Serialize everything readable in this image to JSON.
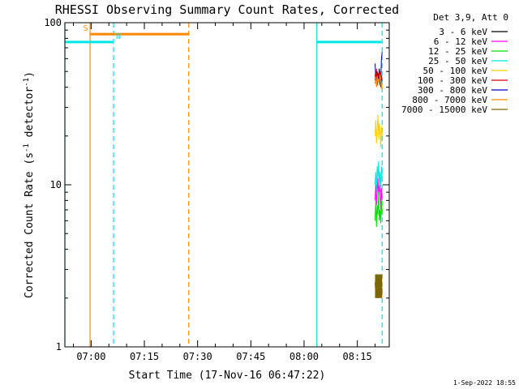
{
  "chart_data": {
    "type": "line",
    "title": "RHESSI Observing Summary Count Rates, Corrected",
    "xlabel": "Start Time (17-Nov-16 06:47:22)",
    "ylabel": "Corrected Count Rate (s",
    "ylabel_sup": "-1",
    "ylabel_tail": " detector",
    "ylabel_end": ")",
    "y_scale": "log",
    "ylim": [
      1,
      100
    ],
    "x_range_minutes": [
      -7.4,
      84.0
    ],
    "x_ticks": [
      {
        "minute": 0,
        "label": "07:00"
      },
      {
        "minute": 15,
        "label": "07:15"
      },
      {
        "minute": 30,
        "label": "07:30"
      },
      {
        "minute": 45,
        "label": "07:45"
      },
      {
        "minute": 60,
        "label": "08:00"
      },
      {
        "minute": 75,
        "label": "08:15"
      }
    ],
    "y_ticks": [
      {
        "value": 1,
        "label": "1"
      },
      {
        "value": 10,
        "label": "10"
      },
      {
        "value": 100,
        "label": "100"
      }
    ],
    "grid": false,
    "legend_placement": "top-right",
    "legend_header": "Det 3,9, Att 0",
    "series": [
      {
        "name": "3 - 6 keV",
        "color": "#000000"
      },
      {
        "name": "6 - 12 keV",
        "color": "#ff00ff"
      },
      {
        "name": "12 - 25 keV",
        "color": "#00dd00"
      },
      {
        "name": "25 - 50 keV",
        "color": "#00e5e5"
      },
      {
        "name": "50 - 100 keV",
        "color": "#ffcc00"
      },
      {
        "name": "100 - 300 keV",
        "color": "#dd0000"
      },
      {
        "name": "300 - 800 keV",
        "color": "#0000cc"
      },
      {
        "name": "800 - 7000 keV",
        "color": "#ff8800"
      },
      {
        "name": "7000 - 15000 keV",
        "color": "#806600"
      }
    ],
    "bursts": [
      {
        "series": "3 - 6 keV",
        "x": [
          80.0,
          80.2,
          80.4,
          80.6,
          80.8,
          81.0,
          81.2,
          81.4,
          81.6,
          81.8,
          82.0
        ],
        "y": [
          44,
          48,
          41,
          50,
          46,
          43,
          52,
          45,
          40,
          47,
          44
        ]
      },
      {
        "series": "300 - 800 keV",
        "x": [
          80.0,
          80.2,
          80.4,
          80.6,
          80.8,
          81.0,
          81.2,
          81.4,
          81.6,
          81.8,
          82.0
        ],
        "y": [
          56,
          45,
          50,
          42,
          48,
          44,
          52,
          45,
          43,
          60,
          66
        ]
      },
      {
        "series": "100 - 300 keV",
        "x": [
          80.0,
          80.2,
          80.4,
          80.6,
          80.8,
          81.0,
          81.2,
          81.4,
          81.6,
          81.8,
          82.0
        ],
        "y": [
          48,
          44,
          52,
          41,
          47,
          49,
          43,
          50,
          45,
          46,
          44
        ]
      },
      {
        "series": "800 - 7000 keV",
        "x": [
          80.0,
          80.2,
          80.4,
          80.6,
          80.8,
          81.0,
          81.2,
          81.4,
          81.6,
          81.8,
          82.0
        ],
        "y": [
          42,
          46,
          40,
          47,
          43,
          45,
          41,
          48,
          44,
          39,
          42
        ]
      },
      {
        "series": "50 - 100 keV",
        "x": [
          80.0,
          80.2,
          80.4,
          80.6,
          80.8,
          81.0,
          81.2,
          81.4,
          81.6,
          81.8,
          82.0
        ],
        "y": [
          20,
          25,
          18,
          22,
          27,
          19,
          24,
          21,
          17,
          23,
          20
        ]
      },
      {
        "series": "25 - 50 keV",
        "x": [
          80.0,
          80.2,
          80.4,
          80.6,
          80.8,
          81.0,
          81.2,
          81.4,
          81.6,
          81.8,
          82.0
        ],
        "y": [
          10,
          12,
          9,
          13,
          11,
          14,
          10,
          12,
          9,
          13,
          11
        ]
      },
      {
        "series": "6 - 12 keV",
        "x": [
          80.0,
          80.2,
          80.4,
          80.6,
          80.8,
          81.0,
          81.2,
          81.4,
          81.6,
          81.8,
          82.0
        ],
        "y": [
          8,
          10,
          7.5,
          9,
          11,
          8.5,
          10,
          9,
          7,
          9.5,
          8
        ]
      },
      {
        "series": "12 - 25 keV",
        "x": [
          80.0,
          80.2,
          80.4,
          80.6,
          80.8,
          81.0,
          81.2,
          81.4,
          81.6,
          81.8,
          82.0
        ],
        "y": [
          6,
          8,
          5.5,
          7.5,
          6.5,
          9,
          6,
          7,
          5.8,
          8,
          6.5
        ]
      },
      {
        "series": "7000 - 15000 keV",
        "x": [
          80.0,
          80.2,
          80.4,
          80.6,
          80.8,
          81.0,
          81.2,
          81.4,
          81.6,
          81.8,
          82.0
        ],
        "y": [
          2.5,
          2.1,
          2.8,
          2.3,
          2.0,
          2.6,
          2.2,
          2.7,
          2.4,
          2.1,
          2.3
        ]
      }
    ],
    "flag_bars": [
      {
        "label": "S",
        "color": "#ff8800",
        "start": -0.2,
        "end": 27.5,
        "level": 85
      },
      {
        "label": "N",
        "color": "#00e5e5",
        "start": -7.4,
        "end": 6.3,
        "level": 76
      },
      {
        "label": "",
        "color": "#00e5e5",
        "start": 63.6,
        "end": 81.8,
        "level": 76
      }
    ],
    "markers": [
      {
        "minute": -7.4,
        "color": "#00e5e5",
        "style": "solid"
      },
      {
        "minute": -0.3,
        "color": "#ff8800",
        "style": "solid"
      },
      {
        "minute": 6.3,
        "color": "#00e5e5",
        "style": "dashed"
      },
      {
        "minute": 27.5,
        "color": "#ff8800",
        "style": "dashed"
      },
      {
        "minute": 63.6,
        "color": "#00e5e5",
        "style": "solid"
      },
      {
        "minute": 82.0,
        "color": "#00e5e5",
        "style": "dashed"
      }
    ]
  },
  "footer": {
    "timestamp": "1-Sep-2022 18:55"
  }
}
